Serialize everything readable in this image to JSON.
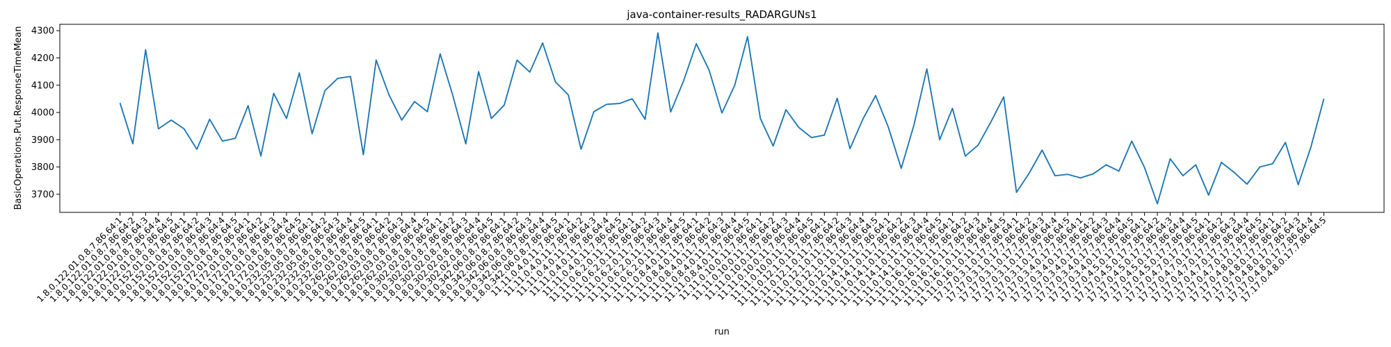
{
  "chart_data": {
    "type": "line",
    "title": "java-container-results_RADARGUNs1",
    "x_label": "run",
    "y_label": "BasicOperations.Put.ResponseTimeMean",
    "categories": [
      "1.8.0.122.01.0.8.7.86.64:1",
      "1.8.0.122.01.0.8.7.86.64:2",
      "1.8.0.122.01.0.8.7.86.64:3",
      "1.8.0.122.01.0.8.7.86.64:4",
      "1.8.0.122.01.0.8.7.86.64:5",
      "1.8.0.152.01.0.8.7.86.64:1",
      "1.8.0.152.01.0.8.7.86.64:2",
      "1.8.0.152.01.0.8.7.86.64:3",
      "1.8.0.152.01.0.8.7.86.64:4",
      "1.8.0.152.01.0.8.7.86.64:5",
      "1.8.0.172.01.0.8.7.86.64:1",
      "1.8.0.172.01.0.8.7.86.64:2",
      "1.8.0.172.01.0.8.7.86.64:3",
      "1.8.0.172.01.0.8.7.86.64:4",
      "1.8.0.172.01.0.8.7.86.64:5",
      "1.8.0.232.05.0.8.7.86.64:1",
      "1.8.0.232.05.0.8.7.86.64:2",
      "1.8.0.232.05.0.8.7.86.64:3",
      "1.8.0.232.05.0.8.7.86.64:4",
      "1.8.0.232.05.0.8.7.86.64:5",
      "1.8.0.262.03.0.8.7.86.64:1",
      "1.8.0.262.03.0.8.7.86.64:2",
      "1.8.0.262.03.0.8.7.86.64:3",
      "1.8.0.262.03.0.8.7.86.64:4",
      "1.8.0.262.03.0.8.7.86.64:5",
      "1.8.0.302.02.0.8.7.86.64:1",
      "1.8.0.302.02.0.8.7.86.64:2",
      "1.8.0.302.02.0.8.7.86.64:3",
      "1.8.0.302.02.0.8.7.86.64:4",
      "1.8.0.302.02.0.8.7.86.64:5",
      "1.8.0.342.06.0.8.7.86.64:1",
      "1.8.0.342.06.0.8.7.86.64:2",
      "1.8.0.342.06.0.8.7.86.64:3",
      "1.8.0.342.06.0.8.7.86.64:4",
      "1.8.0.342.06.0.8.7.86.64:5",
      "11.11.0.4.0.11.7.86.64:1",
      "11.11.0.4.0.11.7.86.64:2",
      "11.11.0.4.0.11.7.86.64:3",
      "11.11.0.4.0.11.7.86.64:4",
      "11.11.0.4.0.11.7.86.64:5",
      "11.11.0.6.2.0.11.7.86.64:1",
      "11.11.0.6.2.0.11.7.86.64:2",
      "11.11.0.6.2.0.11.7.86.64:3",
      "11.11.0.6.2.0.11.7.86.64:4",
      "11.11.0.6.2.0.11.7.86.64:5",
      "11.11.0.8.4.0.11.7.86.64:1",
      "11.11.0.8.4.0.11.7.86.64:2",
      "11.11.0.8.4.0.11.7.86.64:3",
      "11.11.0.8.4.0.11.7.86.64:4",
      "11.11.0.8.4.0.11.7.86.64:5",
      "11.11.0.10.0.11.7.86.64:1",
      "11.11.0.10.0.11.7.86.64:2",
      "11.11.0.10.0.11.7.86.64:3",
      "11.11.0.10.0.11.7.86.64:4",
      "11.11.0.10.0.11.7.86.64:5",
      "11.11.0.12.1.0.11.7.86.64:1",
      "11.11.0.12.1.0.11.7.86.64:2",
      "11.11.0.12.1.0.11.7.86.64:3",
      "11.11.0.12.1.0.11.7.86.64:4",
      "11.11.0.12.1.0.11.7.86.64:5",
      "11.11.0.14.1.0.11.7.86.64:1",
      "11.11.0.14.1.0.11.7.86.64:2",
      "11.11.0.14.1.0.11.7.86.64:3",
      "11.11.0.14.1.0.11.7.86.64:4",
      "11.11.0.14.1.0.11.7.86.64:5",
      "11.11.0.16.1.0.11.7.86.64:1",
      "11.11.0.16.1.0.11.7.86.64:2",
      "11.11.0.16.1.0.11.7.86.64:3",
      "11.11.0.16.1.0.11.7.86.64:4",
      "11.11.0.16.1.0.11.7.86.64:5",
      "17.17.0.3.1.0.17.7.86.64:1",
      "17.17.0.3.1.0.17.7.86.64:2",
      "17.17.0.3.1.0.17.7.86.64:3",
      "17.17.0.3.1.0.17.7.86.64:4",
      "17.17.0.3.1.0.17.7.86.64:5",
      "17.17.0.3.4.0.17.7.86.64:1",
      "17.17.0.3.4.0.17.7.86.64:2",
      "17.17.0.3.4.0.17.7.86.64:3",
      "17.17.0.3.4.0.17.7.86.64:4",
      "17.17.0.3.4.0.17.7.86.64:5",
      "17.17.0.4.5.0.17.7.86.64:1",
      "17.17.0.4.5.0.17.7.86.64:2",
      "17.17.0.4.5.0.17.7.86.64:3",
      "17.17.0.4.5.0.17.7.86.64:4",
      "17.17.0.4.5.0.17.7.86.64:5",
      "17.17.0.4.7.0.17.7.86.64:1",
      "17.17.0.4.7.0.17.7.86.64:2",
      "17.17.0.4.7.0.17.7.86.64:3",
      "17.17.0.4.7.0.17.7.86.64:4",
      "17.17.0.4.7.0.17.7.86.64:5",
      "17.17.0.4.8.0.17.7.86.64:1",
      "17.17.0.4.8.0.17.7.86.64:2",
      "17.17.0.4.8.0.17.7.86.64:3",
      "17.17.0.4.8.0.17.7.86.64:4",
      "17.17.0.4.8.0.17.7.86.64:5"
    ],
    "series": [
      {
        "name": "BasicOperations.Put.ResponseTimeMean",
        "color": "#1f77b4",
        "values": [
          4035,
          3885,
          4230,
          3940,
          3972,
          3940,
          3865,
          3975,
          3895,
          3905,
          4025,
          3840,
          4070,
          3978,
          4145,
          3922,
          4080,
          4125,
          4132,
          3845,
          4192,
          4065,
          3972,
          4040,
          4003,
          4215,
          4060,
          3885,
          4150,
          3978,
          4027,
          4192,
          4148,
          4255,
          4112,
          4065,
          3865,
          4003,
          4030,
          4033,
          4050,
          3975,
          4292,
          4002,
          4115,
          4252,
          4155,
          3998,
          4100,
          4278,
          3978,
          3877,
          4010,
          3945,
          3908,
          3917,
          4052,
          3867,
          3975,
          4062,
          3945,
          3795,
          3955,
          4160,
          3900,
          4015,
          3840,
          3880,
          3965,
          4057,
          3707,
          3778,
          3862,
          3768,
          3773,
          3760,
          3775,
          3808,
          3785,
          3895,
          3798,
          3665,
          3830,
          3768,
          3808,
          3697,
          3817,
          3780,
          3737,
          3800,
          3812,
          3890,
          3735,
          3875,
          4050
        ]
      }
    ],
    "ylim": [
      3633.6,
      4323.4
    ],
    "yticks": [
      3700,
      3800,
      3900,
      4000,
      4100,
      4200,
      4300
    ]
  }
}
